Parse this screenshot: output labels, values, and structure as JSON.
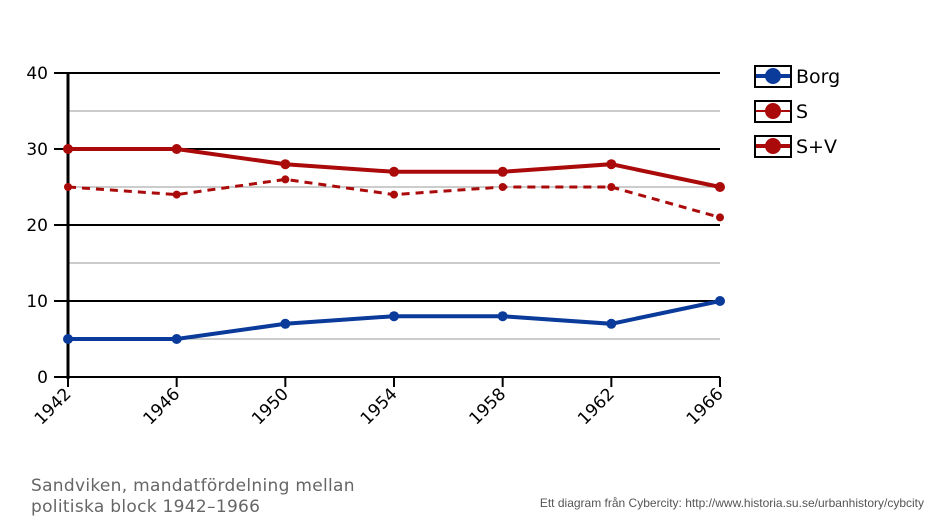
{
  "chart_data": {
    "type": "line",
    "title": "",
    "xlabel": "",
    "ylabel": "",
    "x": [
      "1942",
      "1946",
      "1950",
      "1954",
      "1958",
      "1962",
      "1966"
    ],
    "ylim": [
      0,
      40
    ],
    "yticks": [
      "0",
      "10",
      "20",
      "30",
      "40"
    ],
    "grid": true,
    "legend_position": "top-right",
    "series": [
      {
        "name": "Borg",
        "values": [
          5,
          5,
          7,
          8,
          8,
          7,
          10
        ],
        "color": "#0a3a9a",
        "dashed": false
      },
      {
        "name": "S",
        "values": [
          25,
          24,
          26,
          24,
          25,
          25,
          21
        ],
        "color": "#aa0a0a",
        "dashed": true
      },
      {
        "name": "S+V",
        "values": [
          30,
          30,
          28,
          27,
          27,
          28,
          25
        ],
        "color": "#aa0a0a",
        "dashed": false
      }
    ]
  },
  "caption": {
    "line1": "Sandviken, mandatfördelning mellan",
    "line2": "politiska block 1942–1966"
  },
  "credit": "Ett diagram från Cybercity: http://www.historia.su.se/urbanhistory/cybcity"
}
